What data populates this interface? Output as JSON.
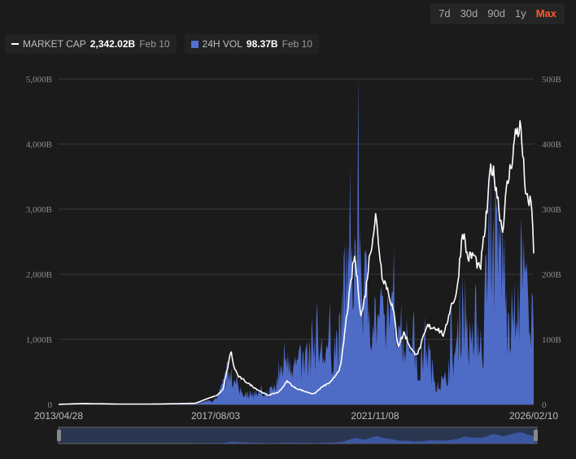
{
  "range_buttons": [
    {
      "label": "7d"
    },
    {
      "label": "30d"
    },
    {
      "label": "90d"
    },
    {
      "label": "1y"
    },
    {
      "label": "Max",
      "active": true
    }
  ],
  "legend": {
    "market_cap": {
      "label": "MARKET CAP",
      "value": "2,342.02B",
      "date": "Feb 10"
    },
    "volume": {
      "label": "24H VOL",
      "value": "98.37B",
      "date": "Feb 10"
    }
  },
  "colors": {
    "market_cap_line": "#ffffff",
    "volume_area": "#5170d0",
    "active_range": "#ff5a2e",
    "background": "#1b1b1b"
  },
  "chart_data": {
    "type": "area",
    "title": "",
    "xlabel": "",
    "ylabel": "",
    "x_ticks": [
      "2013/04/28",
      "2017/08/03",
      "2021/11/08",
      "2026/02/10"
    ],
    "y_left_ticks": [
      "0",
      "1,000B",
      "2,000B",
      "3,000B",
      "4,000B",
      "5,000B"
    ],
    "y_right_ticks": [
      "0",
      "100B",
      "200B",
      "300B",
      "400B",
      "500B"
    ],
    "y_left_lim": [
      0,
      5000
    ],
    "y_right_lim": [
      0,
      500
    ],
    "grid": true,
    "legend_position": "top-left",
    "x_range": [
      "2013-04-28",
      "2026-02-10"
    ],
    "series": [
      {
        "name": "MARKET CAP",
        "axis": "left",
        "units": "B",
        "points": [
          [
            "2013-04-28",
            2
          ],
          [
            "2014-01-01",
            15
          ],
          [
            "2015-01-01",
            6
          ],
          [
            "2016-01-01",
            7
          ],
          [
            "2017-01-01",
            18
          ],
          [
            "2017-05-01",
            90
          ],
          [
            "2017-08-03",
            140
          ],
          [
            "2017-10-01",
            230
          ],
          [
            "2017-12-20",
            830
          ],
          [
            "2018-01-10",
            600
          ],
          [
            "2018-03-01",
            430
          ],
          [
            "2018-06-01",
            330
          ],
          [
            "2018-09-01",
            230
          ],
          [
            "2018-12-15",
            140
          ],
          [
            "2019-04-01",
            190
          ],
          [
            "2019-06-25",
            360
          ],
          [
            "2019-09-01",
            260
          ],
          [
            "2019-12-15",
            200
          ],
          [
            "2020-03-13",
            160
          ],
          [
            "2020-06-01",
            270
          ],
          [
            "2020-09-01",
            350
          ],
          [
            "2020-12-01",
            580
          ],
          [
            "2021-02-01",
            1400
          ],
          [
            "2021-04-15",
            2300
          ],
          [
            "2021-06-20",
            1350
          ],
          [
            "2021-08-01",
            1700
          ],
          [
            "2021-09-05",
            2200
          ],
          [
            "2021-11-10",
            2900
          ],
          [
            "2022-01-10",
            2000
          ],
          [
            "2022-03-01",
            1800
          ],
          [
            "2022-05-01",
            1450
          ],
          [
            "2022-06-18",
            900
          ],
          [
            "2022-08-15",
            1100
          ],
          [
            "2022-11-10",
            800
          ],
          [
            "2023-01-01",
            790
          ],
          [
            "2023-04-01",
            1200
          ],
          [
            "2023-07-01",
            1180
          ],
          [
            "2023-09-15",
            1060
          ],
          [
            "2023-11-15",
            1500
          ],
          [
            "2024-01-15",
            1700
          ],
          [
            "2024-03-14",
            2700
          ],
          [
            "2024-05-01",
            2250
          ],
          [
            "2024-07-01",
            2300
          ],
          [
            "2024-09-01",
            2050
          ],
          [
            "2024-11-10",
            3000
          ],
          [
            "2024-12-17",
            3700
          ],
          [
            "2025-02-01",
            3400
          ],
          [
            "2025-04-08",
            2650
          ],
          [
            "2025-05-20",
            3300
          ],
          [
            "2025-07-15",
            3800
          ],
          [
            "2025-08-20",
            4200
          ],
          [
            "2025-10-06",
            4250
          ],
          [
            "2025-11-15",
            3400
          ],
          [
            "2025-12-20",
            3000
          ],
          [
            "2026-01-15",
            3200
          ],
          [
            "2026-02-10",
            2342
          ]
        ]
      },
      {
        "name": "24H VOL",
        "axis": "right",
        "units": "B",
        "points": [
          [
            "2013-04-28",
            0.2
          ],
          [
            "2014-01-01",
            0.5
          ],
          [
            "2015-01-01",
            0.4
          ],
          [
            "2016-01-01",
            0.6
          ],
          [
            "2017-01-01",
            2
          ],
          [
            "2017-08-03",
            8
          ],
          [
            "2017-12-20",
            65
          ],
          [
            "2018-02-01",
            28
          ],
          [
            "2018-06-01",
            18
          ],
          [
            "2018-12-15",
            18
          ],
          [
            "2019-03-01",
            30
          ],
          [
            "2019-06-25",
            95
          ],
          [
            "2019-09-01",
            65
          ],
          [
            "2019-12-15",
            70
          ],
          [
            "2020-03-13",
            110
          ],
          [
            "2020-06-01",
            85
          ],
          [
            "2020-09-01",
            95
          ],
          [
            "2020-12-01",
            110
          ],
          [
            "2021-01-15",
            230
          ],
          [
            "2021-04-15",
            180
          ],
          [
            "2021-05-19",
            455
          ],
          [
            "2021-06-20",
            210
          ],
          [
            "2021-09-05",
            170
          ],
          [
            "2021-11-10",
            150
          ],
          [
            "2022-01-25",
            125
          ],
          [
            "2022-05-12",
            190
          ],
          [
            "2022-06-18",
            160
          ],
          [
            "2022-09-01",
            95
          ],
          [
            "2022-11-10",
            130
          ],
          [
            "2023-01-01",
            45
          ],
          [
            "2023-03-15",
            110
          ],
          [
            "2023-06-01",
            45
          ],
          [
            "2023-09-15",
            35
          ],
          [
            "2023-11-15",
            80
          ],
          [
            "2024-01-15",
            90
          ],
          [
            "2024-03-14",
            190
          ],
          [
            "2024-06-01",
            85
          ],
          [
            "2024-08-05",
            145
          ],
          [
            "2024-10-01",
            95
          ],
          [
            "2024-11-13",
            290
          ],
          [
            "2024-12-17",
            310
          ],
          [
            "2025-02-03",
            250
          ],
          [
            "2025-04-07",
            270
          ],
          [
            "2025-06-01",
            120
          ],
          [
            "2025-08-20",
            150
          ],
          [
            "2025-10-10",
            230
          ],
          [
            "2025-11-21",
            230
          ],
          [
            "2026-01-01",
            95
          ],
          [
            "2026-02-05",
            155
          ],
          [
            "2026-02-10",
            98
          ]
        ]
      }
    ]
  }
}
